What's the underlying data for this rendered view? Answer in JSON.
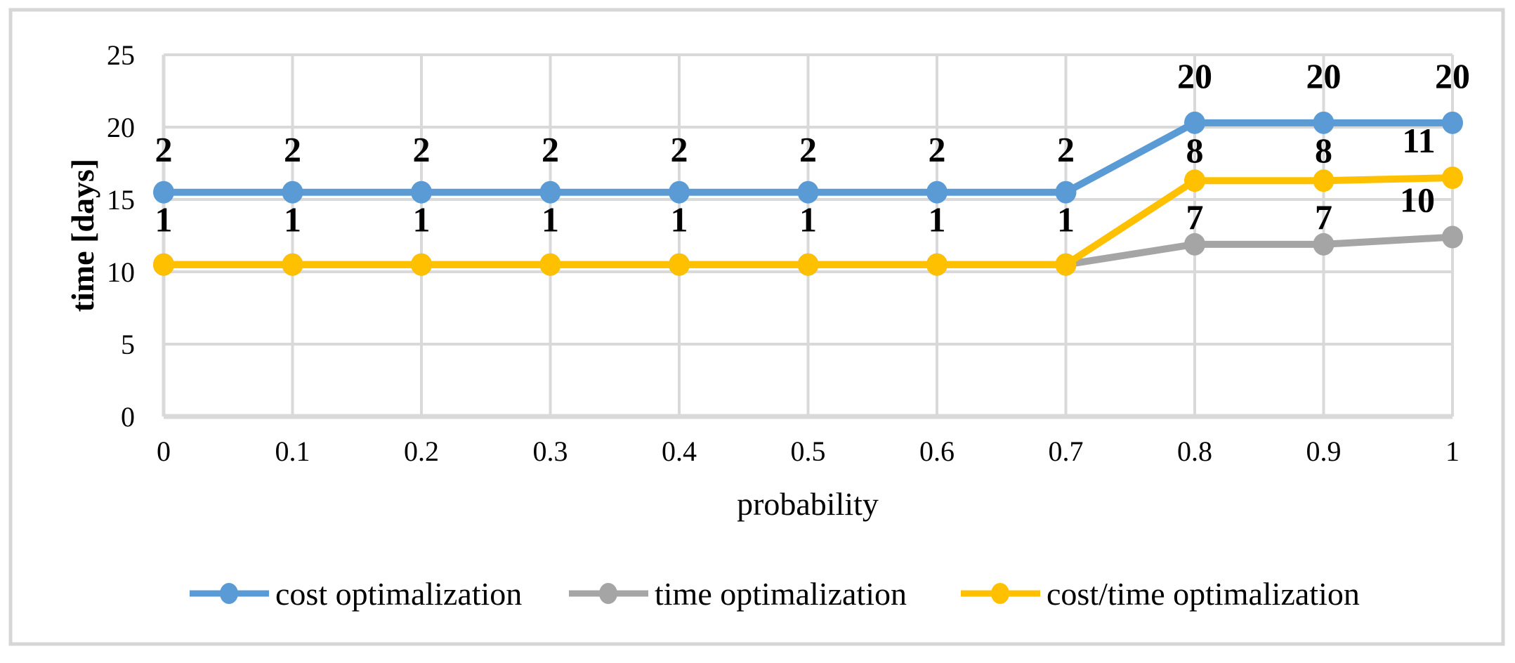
{
  "figure": {
    "background": "#FFFFFF",
    "border_color": "#D6D6D6"
  },
  "chart_data": {
    "type": "line",
    "title": "",
    "xlabel": "probability",
    "ylabel": "time [days]",
    "categories": [
      "0",
      "0.1",
      "0.2",
      "0.3",
      "0.4",
      "0.5",
      "0.6",
      "0.7",
      "0.8",
      "0.9",
      "1"
    ],
    "x": [
      0,
      0.1,
      0.2,
      0.3,
      0.4,
      0.5,
      0.6,
      0.7,
      0.8,
      0.9,
      1
    ],
    "ylim": [
      0,
      25
    ],
    "yticks": [
      0,
      5,
      10,
      15,
      20,
      25
    ],
    "grid": true,
    "gridline_color": "#D9D9D9",
    "legend_position": "bottom",
    "series": [
      {
        "name": "cost optimalization",
        "color": "#5B9BD5",
        "values": [
          15.5,
          15.5,
          15.5,
          15.5,
          15.5,
          15.5,
          15.5,
          15.5,
          20.3,
          20.3,
          20.3
        ],
        "data_labels": [
          "2",
          "2",
          "2",
          "2",
          "2",
          "2",
          "2",
          "2",
          "20",
          "20",
          "20"
        ],
        "label_offsets": [
          [
            0,
            -61
          ],
          [
            0,
            -61
          ],
          [
            0,
            -61
          ],
          [
            0,
            -61
          ],
          [
            0,
            -61
          ],
          [
            0,
            -61
          ],
          [
            0,
            -61
          ],
          [
            0,
            -61
          ],
          [
            0,
            -67
          ],
          [
            0,
            -67
          ],
          [
            0,
            -67
          ]
        ]
      },
      {
        "name": "time optimalization",
        "color": "#A5A5A5",
        "values": [
          10.5,
          10.5,
          10.5,
          10.5,
          10.5,
          10.5,
          10.5,
          10.5,
          11.9,
          11.9,
          12.4
        ],
        "data_labels": [
          null,
          null,
          null,
          null,
          null,
          null,
          null,
          null,
          "7",
          "7",
          "10"
        ],
        "label_offsets": [
          null,
          null,
          null,
          null,
          null,
          null,
          null,
          null,
          [
            0,
            -39
          ],
          [
            0,
            -39
          ],
          [
            -50,
            -53
          ]
        ]
      },
      {
        "name": "cost/time optimalization",
        "color": "#FFC000",
        "values": [
          10.5,
          10.5,
          10.5,
          10.5,
          10.5,
          10.5,
          10.5,
          10.5,
          16.3,
          16.3,
          16.5
        ],
        "data_labels": [
          "1",
          "1",
          "1",
          "1",
          "1",
          "1",
          "1",
          "1",
          "8",
          "8",
          "11"
        ],
        "label_offsets": [
          [
            0,
            -64
          ],
          [
            0,
            -64
          ],
          [
            0,
            -64
          ],
          [
            0,
            -64
          ],
          [
            0,
            -64
          ],
          [
            0,
            -64
          ],
          [
            0,
            -64
          ],
          [
            0,
            -64
          ],
          [
            0,
            -43
          ],
          [
            0,
            -43
          ],
          [
            -48,
            -53
          ]
        ]
      }
    ]
  }
}
